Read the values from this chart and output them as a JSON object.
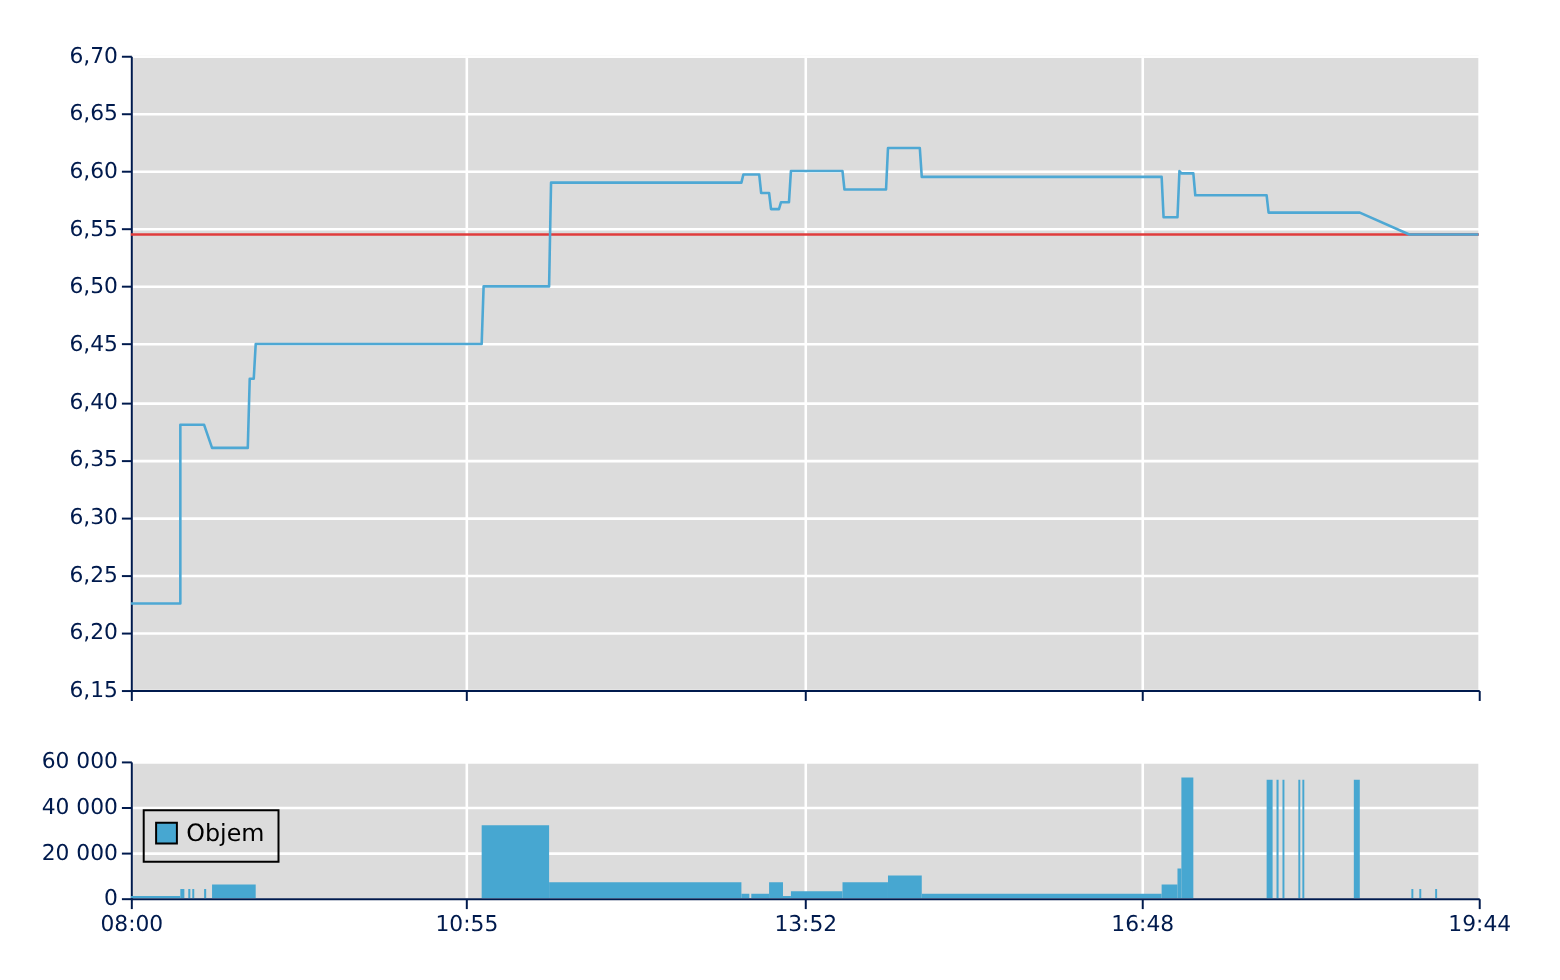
{
  "chart_data": [
    {
      "type": "line",
      "line_style": "solid",
      "marker": "none",
      "grid": true,
      "tick_labels": "y",
      "series": [
        {
          "color": "#4ea8d4",
          "x": [
            8.0,
            8.431,
            8.431,
            8.638,
            8.707,
            9.018,
            9.035,
            9.07,
            9.087,
            11.054,
            11.071,
            11.641,
            11.658,
            13.315,
            13.332,
            13.47,
            13.487,
            13.556,
            13.573,
            13.642,
            13.66,
            13.729,
            13.746,
            14.195,
            14.212,
            14.574,
            14.591,
            14.868,
            14.885,
            16.973,
            16.99,
            17.111,
            17.128,
            17.145,
            17.249,
            17.266,
            17.887,
            17.904,
            18.698,
            19.129,
            19.733
          ],
          "values": [
            6.225,
            6.225,
            6.38,
            6.38,
            6.36,
            6.36,
            6.42,
            6.42,
            6.45,
            6.45,
            6.5,
            6.5,
            6.59,
            6.59,
            6.597,
            6.597,
            6.581,
            6.581,
            6.567,
            6.567,
            6.573,
            6.573,
            6.6,
            6.6,
            6.584,
            6.584,
            6.62,
            6.62,
            6.595,
            6.595,
            6.56,
            6.56,
            6.6,
            6.598,
            6.598,
            6.579,
            6.579,
            6.564,
            6.564,
            6.545,
            6.545
          ]
        }
      ],
      "xlim": [
        8,
        19.7333
      ],
      "xticks": [
        {
          "value": 8,
          "label": null
        },
        {
          "value": 10.9167,
          "label": null
        },
        {
          "value": 13.8667,
          "label": null
        },
        {
          "value": 16.8,
          "label": null
        },
        {
          "value": 19.7333,
          "label": null
        }
      ],
      "ylim": [
        6.15,
        6.7
      ],
      "yticks": [
        {
          "value": 6.15,
          "label": "6,15"
        },
        {
          "value": 6.2,
          "label": "6,20"
        },
        {
          "value": 6.25,
          "label": "6,25"
        },
        {
          "value": 6.3,
          "label": "6,30"
        },
        {
          "value": 6.35,
          "label": "6,35"
        },
        {
          "value": 6.4,
          "label": "6,40"
        },
        {
          "value": 6.45,
          "label": "6,45"
        },
        {
          "value": 6.5,
          "label": "6,50"
        },
        {
          "value": 6.55,
          "label": "6,55"
        },
        {
          "value": 6.6,
          "label": "6,60"
        },
        {
          "value": 6.65,
          "label": "6,65"
        },
        {
          "value": 6.7,
          "label": "6,70"
        }
      ],
      "ref_lines": [
        {
          "axis": "y",
          "value": 6.545,
          "label": null,
          "color": "#e03c3c"
        }
      ]
    },
    {
      "type": "histogram",
      "grid": true,
      "legend": "left",
      "bins": [
        8.0,
        8.431,
        8.466,
        8.5,
        8.518,
        8.535,
        8.552,
        8.638,
        8.656,
        8.707,
        9.087,
        11.054,
        11.641,
        13.315,
        13.384,
        13.401,
        13.556,
        13.677,
        13.746,
        14.195,
        14.591,
        14.885,
        16.973,
        17.111,
        17.145,
        17.249,
        17.887,
        17.939,
        17.973,
        17.991,
        18.025,
        18.042,
        18.163,
        18.18,
        18.198,
        18.215,
        18.646,
        18.698,
        19.147,
        19.164,
        19.216,
        19.233,
        19.354,
        19.371
      ],
      "series": [
        {
          "name": "Objem",
          "color": "#47a7d1",
          "values": [
            1000,
            4000,
            0,
            4000,
            0,
            4000,
            0,
            4000,
            0,
            6000,
            0,
            32000,
            7000,
            2000,
            0,
            2000,
            7000,
            1000,
            3000,
            7000,
            10000,
            2000,
            6000,
            13000,
            53000,
            0,
            52000,
            0,
            52000,
            0,
            52000,
            0,
            52000,
            0,
            52000,
            0,
            52000,
            0,
            4000,
            0,
            4000,
            0,
            4000
          ]
        }
      ],
      "xlim": [
        8,
        19.7333
      ],
      "xticks": [
        {
          "value": 8,
          "label": "08:00"
        },
        {
          "value": 10.9167,
          "label": "10:55"
        },
        {
          "value": 13.8667,
          "label": "13:52"
        },
        {
          "value": 16.8,
          "label": "16:48"
        },
        {
          "value": 19.7333,
          "label": "19:44"
        }
      ],
      "ylim": [
        0,
        60000
      ],
      "yticks": [
        {
          "value": 0,
          "label": "0"
        },
        {
          "value": 20000,
          "label": "20 000"
        },
        {
          "value": 40000,
          "label": "40 000"
        },
        {
          "value": 60000,
          "label": "60 000"
        }
      ]
    }
  ]
}
